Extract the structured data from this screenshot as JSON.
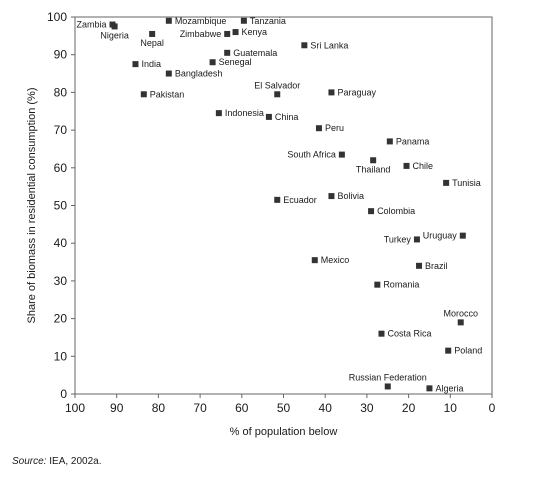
{
  "chart_data": {
    "type": "scatter",
    "xlabel": "% of population below",
    "ylabel": "Share of biomass in residential consumption (%)",
    "xlim": [
      100,
      0
    ],
    "ylim": [
      0,
      100
    ],
    "x_reversed": true,
    "xticks": [
      100,
      90,
      80,
      70,
      60,
      50,
      40,
      30,
      20,
      10,
      0
    ],
    "yticks": [
      0,
      10,
      20,
      30,
      40,
      50,
      60,
      70,
      80,
      90,
      100
    ],
    "grid": false,
    "marker": "square",
    "marker_color": "#333333",
    "points": [
      {
        "label": "Zambia",
        "x": 91,
        "y": 98,
        "label_side": "left"
      },
      {
        "label": "Nigeria",
        "x": 90.5,
        "y": 97.5,
        "label_side": "below"
      },
      {
        "label": "Mozambique",
        "x": 77.5,
        "y": 99,
        "label_side": "right"
      },
      {
        "label": "Tanzania",
        "x": 59.5,
        "y": 99,
        "label_side": "right"
      },
      {
        "label": "Nepal",
        "x": 81.5,
        "y": 95.5,
        "label_side": "below"
      },
      {
        "label": "Zimbabwe",
        "x": 63.5,
        "y": 95.5,
        "label_side": "left"
      },
      {
        "label": "Kenya",
        "x": 61.5,
        "y": 96,
        "label_side": "right"
      },
      {
        "label": "Sri Lanka",
        "x": 45,
        "y": 92.5,
        "label_side": "right"
      },
      {
        "label": "Guatemala",
        "x": 63.5,
        "y": 90.5,
        "label_side": "right"
      },
      {
        "label": "India",
        "x": 85.5,
        "y": 87.5,
        "label_side": "right"
      },
      {
        "label": "Senegal",
        "x": 67,
        "y": 88,
        "label_side": "right"
      },
      {
        "label": "Bangladesh",
        "x": 77.5,
        "y": 85,
        "label_side": "right"
      },
      {
        "label": "Pakistan",
        "x": 83.5,
        "y": 79.5,
        "label_side": "right"
      },
      {
        "label": "El Salvador",
        "x": 51.5,
        "y": 79.5,
        "label_side": "above"
      },
      {
        "label": "Paraguay",
        "x": 38.5,
        "y": 80,
        "label_side": "right"
      },
      {
        "label": "Indonesia",
        "x": 65.5,
        "y": 74.5,
        "label_side": "right"
      },
      {
        "label": "China",
        "x": 53.5,
        "y": 73.5,
        "label_side": "right"
      },
      {
        "label": "Peru",
        "x": 41.5,
        "y": 70.5,
        "label_side": "right"
      },
      {
        "label": "Panama",
        "x": 24.5,
        "y": 67,
        "label_side": "right"
      },
      {
        "label": "South Africa",
        "x": 36,
        "y": 63.5,
        "label_side": "left"
      },
      {
        "label": "Thailand",
        "x": 28.5,
        "y": 62,
        "label_side": "below"
      },
      {
        "label": "Chile",
        "x": 20.5,
        "y": 60.5,
        "label_side": "right"
      },
      {
        "label": "Tunisia",
        "x": 11,
        "y": 56,
        "label_side": "right"
      },
      {
        "label": "Bolivia",
        "x": 38.5,
        "y": 52.5,
        "label_side": "right"
      },
      {
        "label": "Ecuador",
        "x": 51.5,
        "y": 51.5,
        "label_side": "right"
      },
      {
        "label": "Colombia",
        "x": 29,
        "y": 48.5,
        "label_side": "right"
      },
      {
        "label": "Uruguay",
        "x": 7,
        "y": 42,
        "label_side": "left"
      },
      {
        "label": "Turkey",
        "x": 18,
        "y": 41,
        "label_side": "left"
      },
      {
        "label": "Mexico",
        "x": 42.5,
        "y": 35.5,
        "label_side": "right"
      },
      {
        "label": "Brazil",
        "x": 17.5,
        "y": 34,
        "label_side": "right"
      },
      {
        "label": "Romania",
        "x": 27.5,
        "y": 29,
        "label_side": "right"
      },
      {
        "label": "Morocco",
        "x": 7.5,
        "y": 19,
        "label_side": "above"
      },
      {
        "label": "Costa Rica",
        "x": 26.5,
        "y": 16,
        "label_side": "right"
      },
      {
        "label": "Poland",
        "x": 10.5,
        "y": 11.5,
        "label_side": "right"
      },
      {
        "label": "Russian Federation",
        "x": 25,
        "y": 2,
        "label_side": "above"
      },
      {
        "label": "Algeria",
        "x": 15,
        "y": 1.5,
        "label_side": "right"
      }
    ]
  },
  "source": {
    "prefix": "Source:",
    "text": " IEA, 2002a."
  }
}
